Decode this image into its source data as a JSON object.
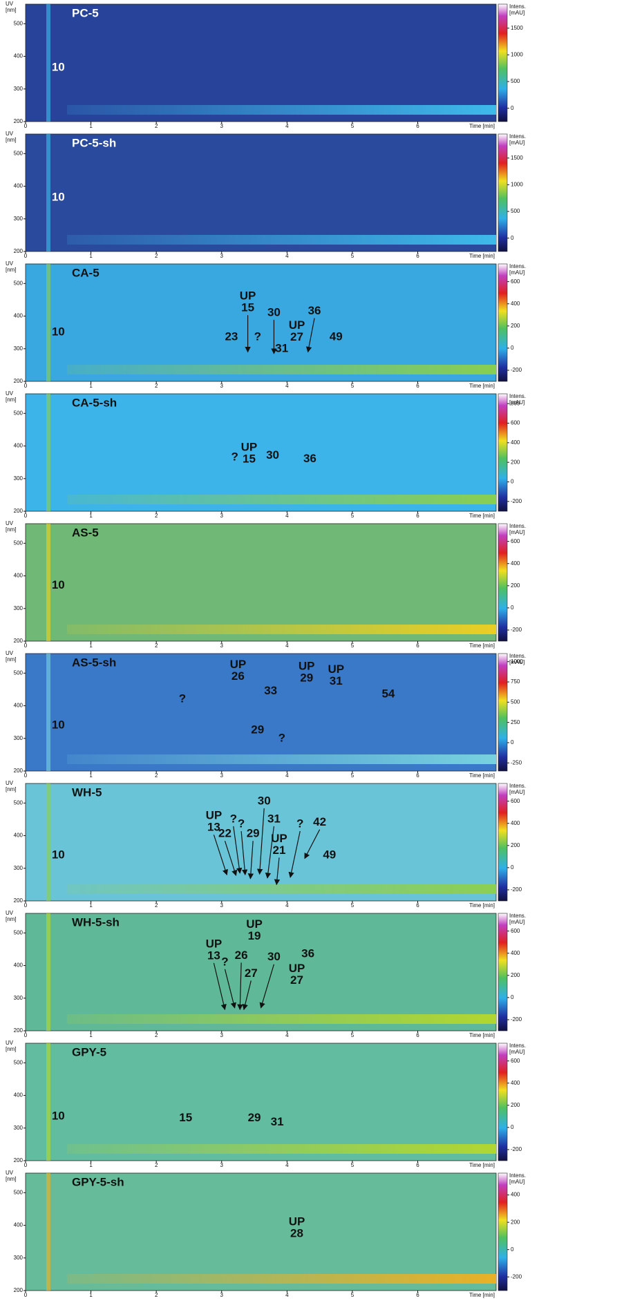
{
  "chart_data": [
    {
      "type": "contour",
      "title": "PC-5",
      "xlabel": "Time [min]",
      "ylabel": [
        "UV",
        "[nm]"
      ],
      "colorbar_label": [
        "Intens.",
        "[mAU]"
      ],
      "xlim": [
        0,
        7.2
      ],
      "xticks": [
        0,
        1,
        2,
        3,
        4,
        5,
        6
      ],
      "ylim": [
        200,
        560
      ],
      "yticks": [
        200,
        300,
        400,
        500
      ],
      "clim": [
        -250,
        1950
      ],
      "cticks": [
        0,
        500,
        1000,
        1500
      ],
      "background": "#27439a",
      "band_color": "#3fc0ee",
      "text_color": "#ffffff",
      "annotations": [
        {
          "lines": [
            "10"
          ],
          "x": 0.5,
          "y": 365
        }
      ]
    },
    {
      "type": "contour",
      "title": "PC-5-sh",
      "xlabel": "Time [min]",
      "ylabel": [
        "UV",
        "[nm]"
      ],
      "colorbar_label": [
        "Intens.",
        "[mAU]"
      ],
      "xlim": [
        0,
        7.2
      ],
      "xticks": [
        0,
        1,
        2,
        3,
        4,
        5,
        6
      ],
      "ylim": [
        200,
        560
      ],
      "yticks": [
        200,
        300,
        400,
        500
      ],
      "clim": [
        -250,
        1950
      ],
      "cticks": [
        0,
        500,
        1000,
        1500
      ],
      "background": "#2a4a9e",
      "band_color": "#3fc0ee",
      "text_color": "#ffffff",
      "annotations": [
        {
          "lines": [
            "10"
          ],
          "x": 0.5,
          "y": 365
        }
      ]
    },
    {
      "type": "contour",
      "title": "CA-5",
      "xlabel": "Time [min]",
      "ylabel": [
        "UV",
        "[nm]"
      ],
      "colorbar_label": [
        "Intens.",
        "[mAU]"
      ],
      "xlim": [
        0,
        7.2
      ],
      "xticks": [
        0,
        1,
        2,
        3,
        4,
        5,
        6
      ],
      "ylim": [
        200,
        560
      ],
      "yticks": [
        200,
        300,
        400,
        500
      ],
      "clim": [
        -300,
        760
      ],
      "cticks": [
        -200,
        0,
        200,
        400,
        600
      ],
      "background": "#3aa8e0",
      "band_color": "#8ed04a",
      "text_color": "#111111",
      "annotations": [
        {
          "lines": [
            "10"
          ],
          "x": 0.5,
          "y": 350
        },
        {
          "lines": [
            "UP",
            "15"
          ],
          "x": 3.4,
          "y": 460,
          "arrow": [
            3.4,
            290
          ]
        },
        {
          "lines": [
            "23"
          ],
          "x": 3.15,
          "y": 335
        },
        {
          "lines": [
            "?"
          ],
          "x": 3.55,
          "y": 335
        },
        {
          "lines": [
            "30"
          ],
          "x": 3.8,
          "y": 410,
          "arrow": [
            3.8,
            285
          ]
        },
        {
          "lines": [
            "31"
          ],
          "x": 3.92,
          "y": 300
        },
        {
          "lines": [
            "UP",
            "27"
          ],
          "x": 4.15,
          "y": 370
        },
        {
          "lines": [
            "36"
          ],
          "x": 4.42,
          "y": 415,
          "arrow": [
            4.32,
            290
          ]
        },
        {
          "lines": [
            "49"
          ],
          "x": 4.75,
          "y": 335
        }
      ]
    },
    {
      "type": "contour",
      "title": "CA-5-sh",
      "xlabel": "Time [min]",
      "ylabel": [
        "UV",
        "[nm]"
      ],
      "colorbar_label": [
        "Intens.",
        "[mAU]"
      ],
      "xlim": [
        0,
        7.2
      ],
      "xticks": [
        0,
        1,
        2,
        3,
        4,
        5,
        6
      ],
      "ylim": [
        200,
        560
      ],
      "yticks": [
        200,
        300,
        400,
        500
      ],
      "clim": [
        -300,
        900
      ],
      "cticks": [
        -200,
        0,
        200,
        400,
        600,
        800
      ],
      "background": "#3cb4ea",
      "band_color": "#8ed04a",
      "text_color": "#111111",
      "annotations": [
        {
          "lines": [
            "?"
          ],
          "x": 3.2,
          "y": 365
        },
        {
          "lines": [
            "UP",
            "15"
          ],
          "x": 3.42,
          "y": 395
        },
        {
          "lines": [
            "30"
          ],
          "x": 3.78,
          "y": 370
        },
        {
          "lines": [
            "36"
          ],
          "x": 4.35,
          "y": 360
        }
      ]
    },
    {
      "type": "contour",
      "title": "AS-5",
      "xlabel": "Time [min]",
      "ylabel": [
        "UV",
        "[nm]"
      ],
      "colorbar_label": [
        "Intens.",
        "[mAU]"
      ],
      "xlim": [
        0,
        7.2
      ],
      "xticks": [
        0,
        1,
        2,
        3,
        4,
        5,
        6
      ],
      "ylim": [
        200,
        560
      ],
      "yticks": [
        200,
        300,
        400,
        500
      ],
      "clim": [
        -300,
        760
      ],
      "cticks": [
        -200,
        0,
        200,
        400,
        600
      ],
      "background": "#6fb876",
      "band_color": "#f0d020",
      "text_color": "#111111",
      "annotations": [
        {
          "lines": [
            "10"
          ],
          "x": 0.5,
          "y": 370
        }
      ]
    },
    {
      "type": "contour",
      "title": "AS-5-sh",
      "xlabel": "Time [min]",
      "ylabel": [
        "UV",
        "[nm]"
      ],
      "colorbar_label": [
        "Intens.",
        "[mAU]"
      ],
      "xlim": [
        0,
        7.2
      ],
      "xticks": [
        0,
        1,
        2,
        3,
        4,
        5,
        6
      ],
      "ylim": [
        200,
        560
      ],
      "yticks": [
        200,
        300,
        400,
        500
      ],
      "clim": [
        -350,
        1100
      ],
      "cticks": [
        -250,
        0,
        250,
        500,
        750,
        1000
      ],
      "background": "#3a78c8",
      "band_color": "#7ad6e0",
      "text_color": "#111111",
      "annotations": [
        {
          "lines": [
            "UP",
            "26"
          ],
          "x": 3.25,
          "y": 525
        },
        {
          "lines": [
            "UP",
            "29"
          ],
          "x": 4.3,
          "y": 520
        },
        {
          "lines": [
            "UP",
            "31"
          ],
          "x": 4.75,
          "y": 510
        },
        {
          "lines": [
            "33"
          ],
          "x": 3.75,
          "y": 445
        },
        {
          "lines": [
            "?"
          ],
          "x": 2.4,
          "y": 420
        },
        {
          "lines": [
            "54"
          ],
          "x": 5.55,
          "y": 435
        },
        {
          "lines": [
            "29"
          ],
          "x": 3.55,
          "y": 325
        },
        {
          "lines": [
            "?"
          ],
          "x": 3.92,
          "y": 300
        },
        {
          "lines": [
            "10"
          ],
          "x": 0.5,
          "y": 340
        }
      ]
    },
    {
      "type": "contour",
      "title": "WH-5",
      "xlabel": "Time [min]",
      "ylabel": [
        "UV",
        "[nm]"
      ],
      "colorbar_label": [
        "Intens.",
        "[mAU]"
      ],
      "xlim": [
        0,
        7.2
      ],
      "xticks": [
        0,
        1,
        2,
        3,
        4,
        5,
        6
      ],
      "ylim": [
        200,
        560
      ],
      "yticks": [
        200,
        300,
        400,
        500
      ],
      "clim": [
        -300,
        760
      ],
      "cticks": [
        -200,
        0,
        200,
        400,
        600
      ],
      "background": "#6ac4d8",
      "band_color": "#8ed04a",
      "text_color": "#111111",
      "annotations": [
        {
          "lines": [
            "10"
          ],
          "x": 0.5,
          "y": 340
        },
        {
          "lines": [
            "UP",
            "13"
          ],
          "x": 2.88,
          "y": 460,
          "arrow": [
            3.08,
            280
          ]
        },
        {
          "lines": [
            "22"
          ],
          "x": 3.05,
          "y": 405,
          "arrow": [
            3.22,
            278
          ]
        },
        {
          "lines": [
            "?"
          ],
          "x": 3.18,
          "y": 450,
          "arrow": [
            3.28,
            285
          ]
        },
        {
          "lines": [
            "?"
          ],
          "x": 3.3,
          "y": 435,
          "arrow": [
            3.36,
            280
          ]
        },
        {
          "lines": [
            "29"
          ],
          "x": 3.48,
          "y": 405,
          "arrow": [
            3.44,
            268
          ]
        },
        {
          "lines": [
            "30"
          ],
          "x": 3.65,
          "y": 505,
          "arrow": [
            3.58,
            282
          ]
        },
        {
          "lines": [
            "31"
          ],
          "x": 3.8,
          "y": 450,
          "arrow": [
            3.7,
            270
          ]
        },
        {
          "lines": [
            "UP",
            "21"
          ],
          "x": 3.88,
          "y": 390,
          "arrow": [
            3.84,
            250
          ]
        },
        {
          "lines": [
            "?"
          ],
          "x": 4.2,
          "y": 435,
          "arrow": [
            4.05,
            272
          ]
        },
        {
          "lines": [
            "42"
          ],
          "x": 4.5,
          "y": 440,
          "arrow": [
            4.27,
            330
          ]
        },
        {
          "lines": [
            "49"
          ],
          "x": 4.65,
          "y": 340
        }
      ]
    },
    {
      "type": "contour",
      "title": "WH-5-sh",
      "xlabel": "Time [min]",
      "ylabel": [
        "UV",
        "[nm]"
      ],
      "colorbar_label": [
        "Intens.",
        "[mAU]"
      ],
      "xlim": [
        0,
        7.2
      ],
      "xticks": [
        0,
        1,
        2,
        3,
        4,
        5,
        6
      ],
      "ylim": [
        200,
        560
      ],
      "yticks": [
        200,
        300,
        400,
        500
      ],
      "clim": [
        -300,
        760
      ],
      "cticks": [
        -200,
        0,
        200,
        400,
        600
      ],
      "background": "#5fb898",
      "band_color": "#b6d82a",
      "text_color": "#111111",
      "annotations": [
        {
          "lines": [
            "UP",
            "13"
          ],
          "x": 2.88,
          "y": 465,
          "arrow": [
            3.05,
            265
          ]
        },
        {
          "lines": [
            "?"
          ],
          "x": 3.05,
          "y": 410,
          "arrow": [
            3.2,
            270
          ]
        },
        {
          "lines": [
            "26"
          ],
          "x": 3.3,
          "y": 430,
          "arrow": [
            3.28,
            265
          ]
        },
        {
          "lines": [
            "UP",
            "19"
          ],
          "x": 3.5,
          "y": 525
        },
        {
          "lines": [
            "27"
          ],
          "x": 3.45,
          "y": 375,
          "arrow": [
            3.34,
            265
          ]
        },
        {
          "lines": [
            "30"
          ],
          "x": 3.8,
          "y": 425,
          "arrow": [
            3.6,
            270
          ]
        },
        {
          "lines": [
            "36"
          ],
          "x": 4.32,
          "y": 435
        },
        {
          "lines": [
            "UP",
            "27"
          ],
          "x": 4.15,
          "y": 390
        }
      ]
    },
    {
      "type": "contour",
      "title": "GPY-5",
      "xlabel": "Time [min]",
      "ylabel": [
        "UV",
        "[nm]"
      ],
      "colorbar_label": [
        "Intens.",
        "[mAU]"
      ],
      "xlim": [
        0,
        7.2
      ],
      "xticks": [
        0,
        1,
        2,
        3,
        4,
        5,
        6
      ],
      "ylim": [
        200,
        560
      ],
      "yticks": [
        200,
        300,
        400,
        500
      ],
      "clim": [
        -300,
        760
      ],
      "cticks": [
        -200,
        0,
        200,
        400,
        600
      ],
      "background": "#62bca0",
      "band_color": "#b6d82a",
      "text_color": "#111111",
      "annotations": [
        {
          "lines": [
            "10"
          ],
          "x": 0.5,
          "y": 335
        },
        {
          "lines": [
            "15"
          ],
          "x": 2.45,
          "y": 330
        },
        {
          "lines": [
            "29"
          ],
          "x": 3.5,
          "y": 330
        },
        {
          "lines": [
            "31"
          ],
          "x": 3.85,
          "y": 318
        }
      ]
    },
    {
      "type": "contour",
      "title": "GPY-5-sh",
      "xlabel": "Time [min]",
      "ylabel": [
        "UV",
        "[nm]"
      ],
      "colorbar_label": [
        "Intens.",
        "[mAU]"
      ],
      "xlim": [
        0,
        7.2
      ],
      "xticks": [
        0,
        1,
        2,
        3,
        4,
        5,
        6
      ],
      "ylim": [
        200,
        560
      ],
      "yticks": [
        200,
        300,
        400,
        500
      ],
      "clim": [
        -300,
        560
      ],
      "cticks": [
        -200,
        0,
        200,
        400
      ],
      "background": "#66bc9a",
      "band_color": "#f0b020",
      "text_color": "#111111",
      "annotations": [
        {
          "lines": [
            "UP",
            "28"
          ],
          "x": 4.15,
          "y": 410
        }
      ]
    }
  ]
}
